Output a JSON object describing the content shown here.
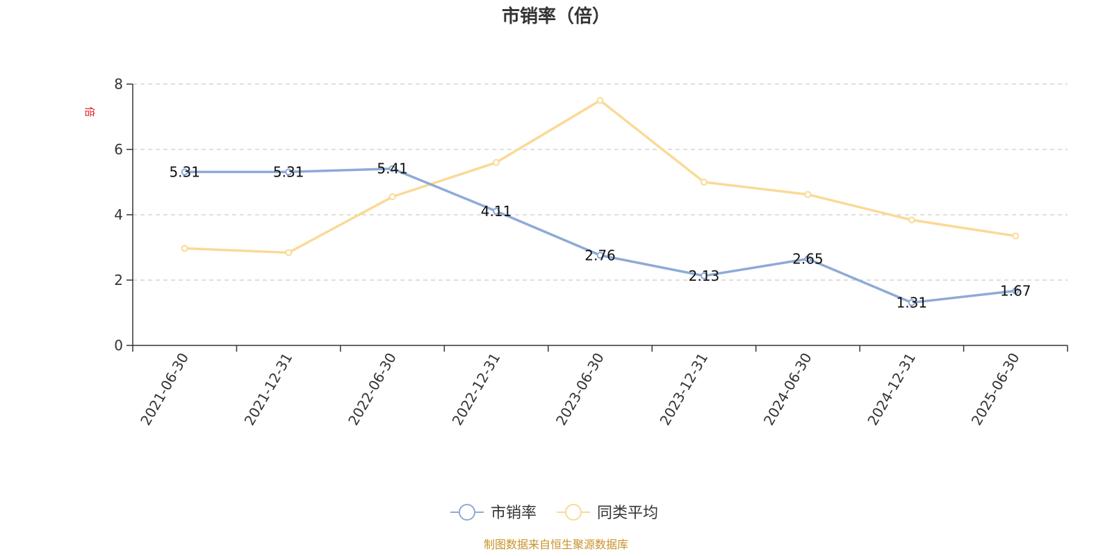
{
  "chart_data": {
    "type": "line",
    "title": "市销率（倍）",
    "ylabel": "倍",
    "x": [
      "2021-06-30",
      "2021-12-31",
      "2022-06-30",
      "2022-12-31",
      "2023-06-30",
      "2023-12-31",
      "2024-06-30",
      "2024-12-31",
      "2025-06-30"
    ],
    "ylim": [
      0,
      8
    ],
    "yticks": [
      "0",
      "2",
      "4",
      "6",
      "8"
    ],
    "grid": true,
    "legend_position": "bottom-center",
    "series": [
      {
        "name": "市销率",
        "color": "#8eaad6",
        "values": [
          5.31,
          5.31,
          5.41,
          4.11,
          2.76,
          2.13,
          2.65,
          1.31,
          1.67
        ],
        "labels": [
          "5.31",
          "5.31",
          "5.41",
          "4.11",
          "2.76",
          "2.13",
          "2.65",
          "1.31",
          "1.67"
        ]
      },
      {
        "name": "同类平均",
        "color": "#fbd995",
        "values": [
          2.97,
          2.84,
          4.55,
          5.6,
          7.5,
          5.0,
          4.62,
          3.84,
          3.35
        ]
      }
    ],
    "source": "制图数据来自恒生聚源数据库"
  }
}
